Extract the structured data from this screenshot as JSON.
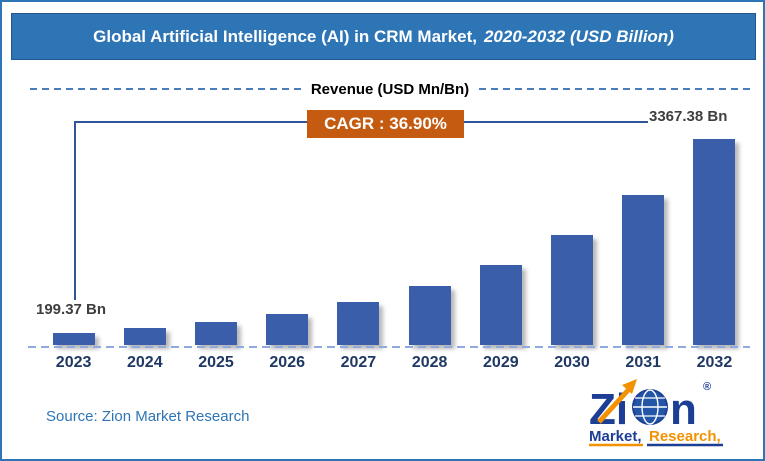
{
  "title_bar": {
    "title_main": "Global Artificial Intelligence (AI) in CRM Market,",
    "title_italic": "2020-2032 (USD Billion)"
  },
  "chart_header": {
    "label": "Revenue (USD Mn/Bn)"
  },
  "annotations": {
    "cagr_label": "CAGR : 36.90%",
    "first_bar_label": "199.37 Bn",
    "last_bar_label": "3367.38 Bn"
  },
  "chart_data": {
    "type": "bar",
    "title": "Revenue (USD Mn/Bn)",
    "categories": [
      "2023",
      "2024",
      "2025",
      "2026",
      "2027",
      "2028",
      "2029",
      "2030",
      "2031",
      "2032"
    ],
    "values": [
      199.37,
      272.94,
      373.65,
      511.53,
      700.28,
      958.69,
      1312.44,
      1796.73,
      2459.72,
      3367.38
    ],
    "unit": "USD Bn",
    "ylim": [
      0,
      3367.38
    ],
    "grid": false,
    "legend": false,
    "bar_color": "#3a5ea9",
    "labeled_points": [
      {
        "category": "2023",
        "label": "199.37 Bn"
      },
      {
        "category": "2032",
        "label": "3367.38 Bn"
      }
    ],
    "cagr": "36.90%"
  },
  "footer": {
    "source": "Source: Zion Market Research"
  },
  "logo": {
    "zi": "Zi",
    "n": "n",
    "registered": "®",
    "market": "Market,",
    "research": "Research,"
  },
  "colors": {
    "banner_bg": "#2e75b5",
    "banner_text": "#ffffff",
    "bar": "#3a5ea9",
    "cagr_bg": "#c55a11",
    "cagr_text": "#ffffff",
    "baseline_dash": "#8faadc",
    "header_dash": "#4a7ebb",
    "connector_line": "#2f5597",
    "year_label": "#1f3864",
    "value_label": "#3f3f3f",
    "source_text": "#2e75b5",
    "logo_blue": "#1c3e94",
    "logo_orange": "#f39200"
  }
}
